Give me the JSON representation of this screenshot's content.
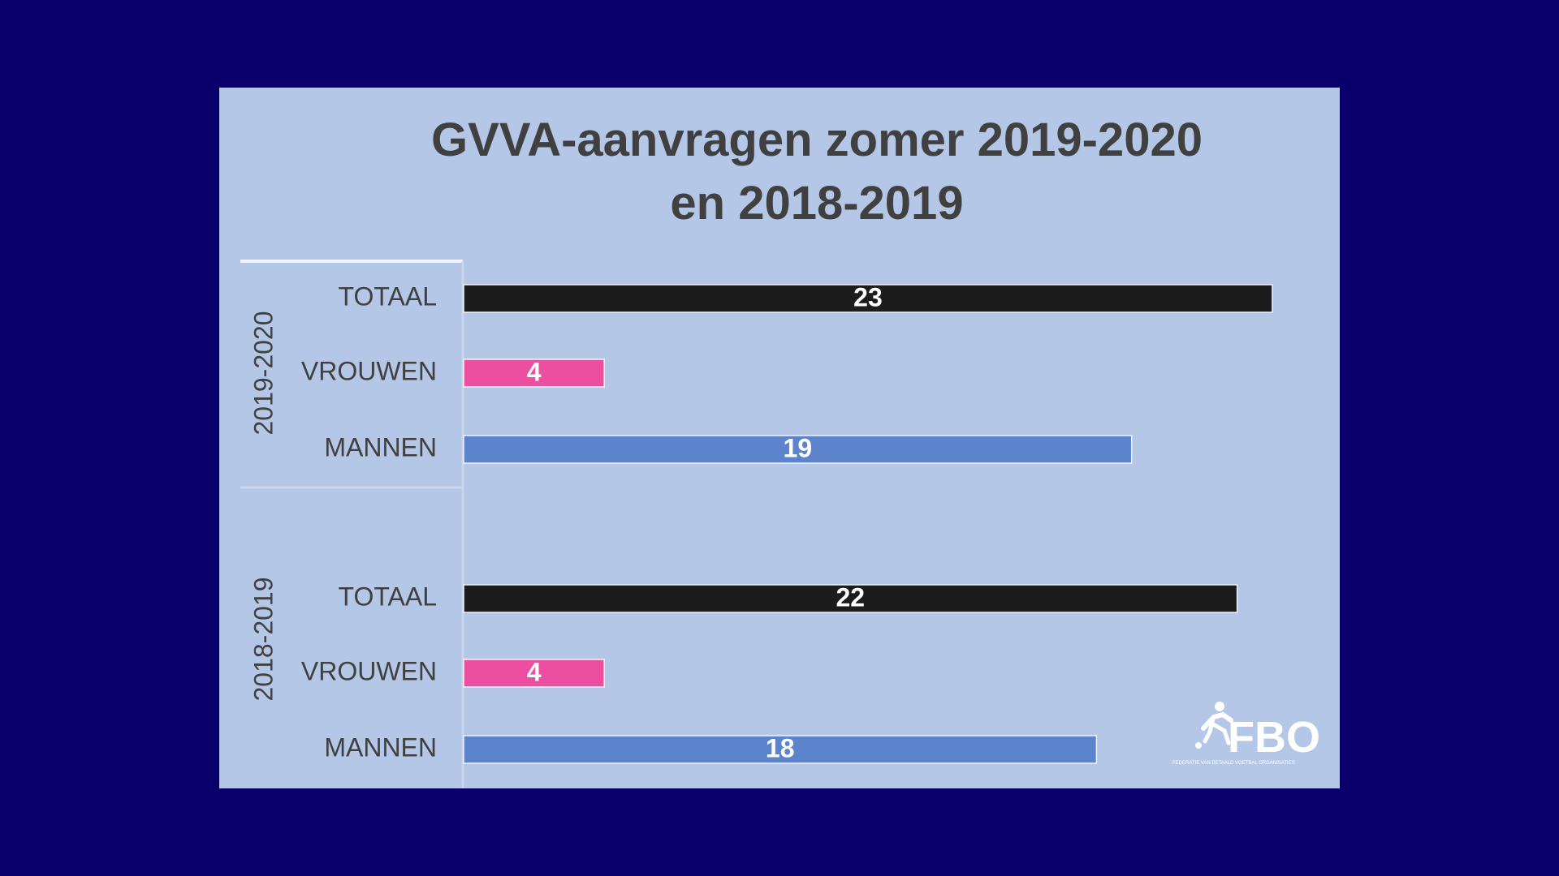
{
  "chart_data": {
    "type": "bar",
    "orientation": "horizontal",
    "title_lines": [
      "GVVA-aanvragen zomer 2019-2020",
      "en 2018-2019"
    ],
    "groups": [
      {
        "name": "2019-2020",
        "bars": [
          {
            "category": "TOTAAL",
            "value": 23,
            "color": "#1c1c1c"
          },
          {
            "category": "VROUWEN",
            "value": 4,
            "color": "#ec4ea0"
          },
          {
            "category": "MANNEN",
            "value": 19,
            "color": "#5b84cc"
          }
        ]
      },
      {
        "name": "2018-2019",
        "bars": [
          {
            "category": "TOTAAL",
            "value": 22,
            "color": "#1c1c1c"
          },
          {
            "category": "VROUWEN",
            "value": 4,
            "color": "#ec4ea0"
          },
          {
            "category": "MANNEN",
            "value": 18,
            "color": "#5b84cc"
          }
        ]
      }
    ],
    "xlim": [
      0,
      23
    ],
    "grid": false,
    "legend": "none",
    "data_labels": "inside-center"
  },
  "logo": {
    "text": "FBO",
    "subtitle": "FEDERATIE VAN BETAALD VOETBAL ORGANISATIES",
    "icon": "soccer-player-icon"
  },
  "colors": {
    "background": "#0a006b",
    "panel": "#b4c7e7",
    "text": "#404040",
    "totaal": "#1c1c1c",
    "vrouwen": "#ec4ea0",
    "mannen": "#5b84cc"
  }
}
